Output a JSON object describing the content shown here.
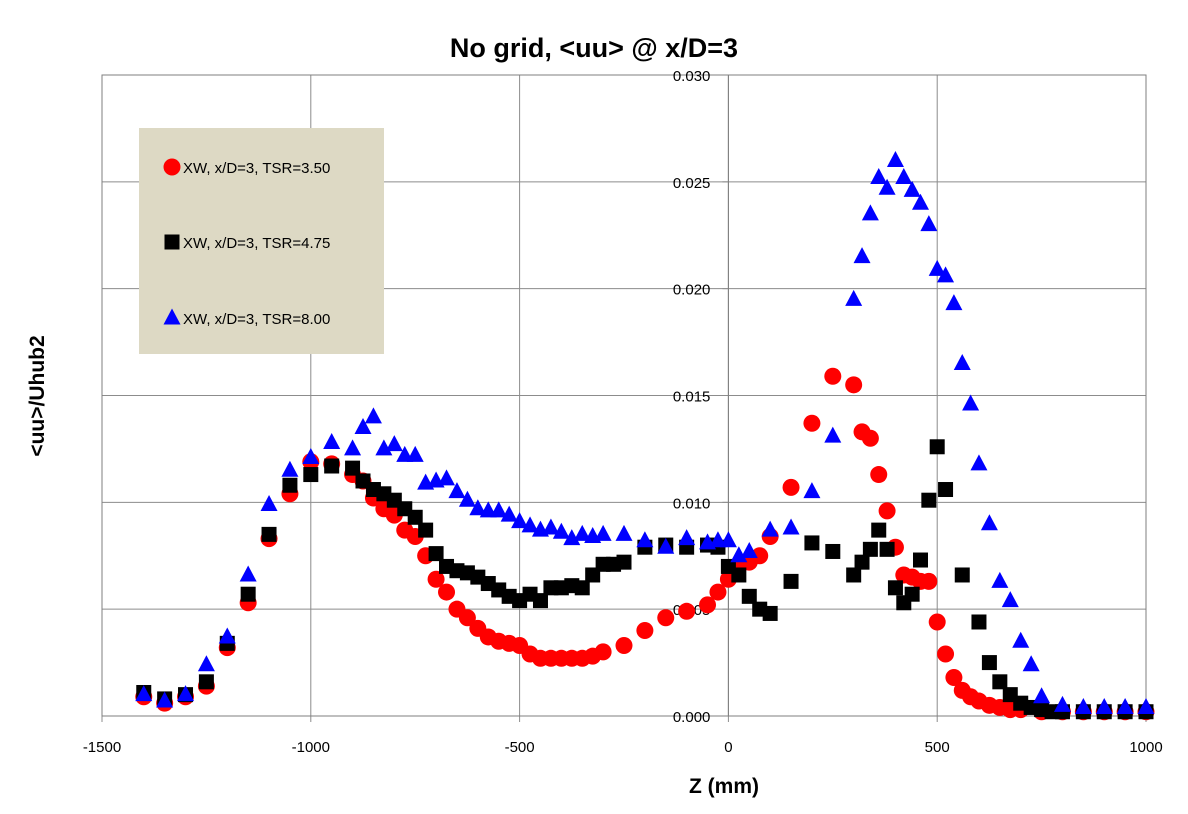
{
  "chart_data": {
    "type": "scatter",
    "title": "No grid, <uu> @ x/D=3",
    "xlabel": "Z (mm)",
    "ylabel": "<uu>/Uhub2",
    "xlim": [
      -1500,
      1000
    ],
    "ylim": [
      0,
      0.03
    ],
    "x_ticks": [
      -1500,
      -1000,
      -500,
      0,
      500,
      1000
    ],
    "x_tick_labels": [
      "-1500",
      "-1000",
      "-500",
      "0",
      "500",
      "1000"
    ],
    "y_ticks": [
      0,
      0.005,
      0.01,
      0.015,
      0.02,
      0.025,
      0.03
    ],
    "y_tick_labels": [
      "0.000",
      "0.005",
      "0.010",
      "0.015",
      "0.020",
      "0.025",
      "0.030"
    ],
    "grid": true,
    "legend_position": "top-left",
    "series": [
      {
        "name": "XW, x/D=3, TSR=3.50",
        "color": "#ff0000",
        "marker": "circle",
        "points": [
          [
            -1400,
            0.0009
          ],
          [
            -1350,
            0.0006
          ],
          [
            -1300,
            0.0009
          ],
          [
            -1250,
            0.0014
          ],
          [
            -1200,
            0.0032
          ],
          [
            -1150,
            0.0053
          ],
          [
            -1100,
            0.0083
          ],
          [
            -1050,
            0.0104
          ],
          [
            -1000,
            0.0119
          ],
          [
            -950,
            0.0118
          ],
          [
            -900,
            0.0113
          ],
          [
            -875,
            0.011
          ],
          [
            -850,
            0.0102
          ],
          [
            -825,
            0.0097
          ],
          [
            -800,
            0.0094
          ],
          [
            -775,
            0.0087
          ],
          [
            -750,
            0.0084
          ],
          [
            -725,
            0.0075
          ],
          [
            -700,
            0.0064
          ],
          [
            -675,
            0.0058
          ],
          [
            -650,
            0.005
          ],
          [
            -625,
            0.0046
          ],
          [
            -600,
            0.0041
          ],
          [
            -575,
            0.0037
          ],
          [
            -550,
            0.0035
          ],
          [
            -525,
            0.0034
          ],
          [
            -500,
            0.0033
          ],
          [
            -475,
            0.0029
          ],
          [
            -450,
            0.0027
          ],
          [
            -425,
            0.0027
          ],
          [
            -400,
            0.0027
          ],
          [
            -375,
            0.0027
          ],
          [
            -350,
            0.0027
          ],
          [
            -325,
            0.0028
          ],
          [
            -300,
            0.003
          ],
          [
            -250,
            0.0033
          ],
          [
            -200,
            0.004
          ],
          [
            -150,
            0.0046
          ],
          [
            -100,
            0.0049
          ],
          [
            -50,
            0.0052
          ],
          [
            -25,
            0.0058
          ],
          [
            0,
            0.0064
          ],
          [
            25,
            0.007
          ],
          [
            50,
            0.0072
          ],
          [
            75,
            0.0075
          ],
          [
            100,
            0.0084
          ],
          [
            150,
            0.0107
          ],
          [
            200,
            0.0137
          ],
          [
            250,
            0.0159
          ],
          [
            300,
            0.0155
          ],
          [
            320,
            0.0133
          ],
          [
            340,
            0.013
          ],
          [
            360,
            0.0113
          ],
          [
            380,
            0.0096
          ],
          [
            400,
            0.0079
          ],
          [
            420,
            0.0066
          ],
          [
            440,
            0.0065
          ],
          [
            460,
            0.0063
          ],
          [
            480,
            0.0063
          ],
          [
            500,
            0.0044
          ],
          [
            520,
            0.0029
          ],
          [
            540,
            0.0018
          ],
          [
            560,
            0.0012
          ],
          [
            580,
            0.0009
          ],
          [
            600,
            0.0007
          ],
          [
            625,
            0.0005
          ],
          [
            650,
            0.0004
          ],
          [
            675,
            0.0003
          ],
          [
            700,
            0.0003
          ],
          [
            750,
            0.0002
          ],
          [
            800,
            0.0002
          ],
          [
            850,
            0.0002
          ],
          [
            900,
            0.0002
          ],
          [
            950,
            0.0002
          ],
          [
            1000,
            0.0002
          ]
        ]
      },
      {
        "name": "XW, x/D=3, TSR=4.75",
        "color": "#000000",
        "marker": "square",
        "points": [
          [
            -1400,
            0.0011
          ],
          [
            -1350,
            0.0008
          ],
          [
            -1300,
            0.001
          ],
          [
            -1250,
            0.0016
          ],
          [
            -1200,
            0.0034
          ],
          [
            -1150,
            0.0057
          ],
          [
            -1100,
            0.0085
          ],
          [
            -1050,
            0.0108
          ],
          [
            -1000,
            0.0113
          ],
          [
            -950,
            0.0117
          ],
          [
            -900,
            0.0116
          ],
          [
            -875,
            0.011
          ],
          [
            -850,
            0.0106
          ],
          [
            -825,
            0.0104
          ],
          [
            -800,
            0.0101
          ],
          [
            -775,
            0.0097
          ],
          [
            -750,
            0.0093
          ],
          [
            -725,
            0.0087
          ],
          [
            -700,
            0.0076
          ],
          [
            -675,
            0.007
          ],
          [
            -650,
            0.0068
          ],
          [
            -625,
            0.0067
          ],
          [
            -600,
            0.0065
          ],
          [
            -575,
            0.0062
          ],
          [
            -550,
            0.0059
          ],
          [
            -525,
            0.0056
          ],
          [
            -500,
            0.0054
          ],
          [
            -475,
            0.0057
          ],
          [
            -450,
            0.0054
          ],
          [
            -425,
            0.006
          ],
          [
            -400,
            0.006
          ],
          [
            -375,
            0.0061
          ],
          [
            -350,
            0.006
          ],
          [
            -325,
            0.0066
          ],
          [
            -300,
            0.0071
          ],
          [
            -275,
            0.0071
          ],
          [
            -250,
            0.0072
          ],
          [
            -200,
            0.0079
          ],
          [
            -150,
            0.008
          ],
          [
            -100,
            0.0079
          ],
          [
            -50,
            0.008
          ],
          [
            -25,
            0.0079
          ],
          [
            0,
            0.007
          ],
          [
            25,
            0.0066
          ],
          [
            50,
            0.0056
          ],
          [
            75,
            0.005
          ],
          [
            100,
            0.0048
          ],
          [
            150,
            0.0063
          ],
          [
            200,
            0.0081
          ],
          [
            250,
            0.0077
          ],
          [
            300,
            0.0066
          ],
          [
            320,
            0.0072
          ],
          [
            340,
            0.0078
          ],
          [
            360,
            0.0087
          ],
          [
            380,
            0.0078
          ],
          [
            400,
            0.006
          ],
          [
            420,
            0.0053
          ],
          [
            440,
            0.0057
          ],
          [
            460,
            0.0073
          ],
          [
            480,
            0.0101
          ],
          [
            500,
            0.0126
          ],
          [
            520,
            0.0106
          ],
          [
            560,
            0.0066
          ],
          [
            600,
            0.0044
          ],
          [
            625,
            0.0025
          ],
          [
            650,
            0.0016
          ],
          [
            675,
            0.001
          ],
          [
            700,
            0.0006
          ],
          [
            725,
            0.0004
          ],
          [
            750,
            0.0003
          ],
          [
            775,
            0.0002
          ],
          [
            800,
            0.0002
          ],
          [
            850,
            0.0002
          ],
          [
            900,
            0.0002
          ],
          [
            950,
            0.0002
          ],
          [
            1000,
            0.0002
          ]
        ]
      },
      {
        "name": "XW, x/D=3, TSR=8.00",
        "color": "#0000ff",
        "marker": "triangle",
        "points": [
          [
            -1400,
            0.001
          ],
          [
            -1350,
            0.0007
          ],
          [
            -1300,
            0.001
          ],
          [
            -1250,
            0.0024
          ],
          [
            -1200,
            0.0037
          ],
          [
            -1150,
            0.0066
          ],
          [
            -1100,
            0.0099
          ],
          [
            -1050,
            0.0115
          ],
          [
            -1000,
            0.0121
          ],
          [
            -950,
            0.0128
          ],
          [
            -900,
            0.0125
          ],
          [
            -875,
            0.0135
          ],
          [
            -850,
            0.014
          ],
          [
            -825,
            0.0125
          ],
          [
            -800,
            0.0127
          ],
          [
            -775,
            0.0122
          ],
          [
            -750,
            0.0122
          ],
          [
            -725,
            0.0109
          ],
          [
            -700,
            0.011
          ],
          [
            -675,
            0.0111
          ],
          [
            -650,
            0.0105
          ],
          [
            -625,
            0.0101
          ],
          [
            -600,
            0.0097
          ],
          [
            -575,
            0.0096
          ],
          [
            -550,
            0.0096
          ],
          [
            -525,
            0.0094
          ],
          [
            -500,
            0.0091
          ],
          [
            -475,
            0.0089
          ],
          [
            -450,
            0.0087
          ],
          [
            -425,
            0.0088
          ],
          [
            -400,
            0.0086
          ],
          [
            -375,
            0.0083
          ],
          [
            -350,
            0.0085
          ],
          [
            -325,
            0.0084
          ],
          [
            -300,
            0.0085
          ],
          [
            -250,
            0.0085
          ],
          [
            -200,
            0.0082
          ],
          [
            -150,
            0.0079
          ],
          [
            -100,
            0.0083
          ],
          [
            -50,
            0.0081
          ],
          [
            -25,
            0.0082
          ],
          [
            0,
            0.0082
          ],
          [
            25,
            0.0075
          ],
          [
            50,
            0.0077
          ],
          [
            100,
            0.0087
          ],
          [
            150,
            0.0088
          ],
          [
            200,
            0.0105
          ],
          [
            250,
            0.0131
          ],
          [
            300,
            0.0195
          ],
          [
            320,
            0.0215
          ],
          [
            340,
            0.0235
          ],
          [
            360,
            0.0252
          ],
          [
            380,
            0.0247
          ],
          [
            400,
            0.026
          ],
          [
            420,
            0.0252
          ],
          [
            440,
            0.0246
          ],
          [
            460,
            0.024
          ],
          [
            480,
            0.023
          ],
          [
            500,
            0.0209
          ],
          [
            520,
            0.0206
          ],
          [
            540,
            0.0193
          ],
          [
            560,
            0.0165
          ],
          [
            580,
            0.0146
          ],
          [
            600,
            0.0118
          ],
          [
            625,
            0.009
          ],
          [
            650,
            0.0063
          ],
          [
            675,
            0.0054
          ],
          [
            700,
            0.0035
          ],
          [
            725,
            0.0024
          ],
          [
            750,
            0.0009
          ],
          [
            800,
            0.0005
          ],
          [
            850,
            0.0004
          ],
          [
            900,
            0.0004
          ],
          [
            950,
            0.0004
          ],
          [
            1000,
            0.0004
          ]
        ]
      }
    ]
  }
}
